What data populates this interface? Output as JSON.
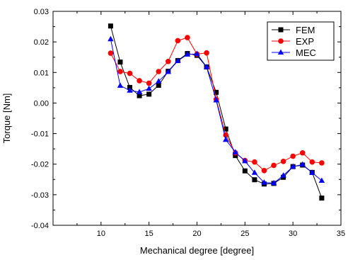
{
  "chart_data": {
    "type": "line",
    "title": "",
    "xlabel": "Mechanical degree [degree]",
    "ylabel": "Torque [Nm]",
    "xlim": [
      5,
      35
    ],
    "ylim": [
      -0.04,
      0.03
    ],
    "x_ticks": [
      10,
      15,
      20,
      25,
      30,
      35
    ],
    "y_ticks": [
      -0.04,
      -0.03,
      -0.02,
      -0.01,
      0.0,
      0.01,
      0.02,
      0.03
    ],
    "x_tick_labels": [
      "10",
      "15",
      "20",
      "25",
      "30",
      "35"
    ],
    "y_tick_labels": [
      "-0.04",
      "-0.03",
      "-0.02",
      "-0.01",
      "0.00",
      "0.01",
      "0.02",
      "0.03"
    ],
    "grid": false,
    "legend_position": "top-right",
    "x": [
      11,
      12,
      13,
      14,
      15,
      16,
      17,
      18,
      19,
      20,
      21,
      22,
      23,
      24,
      25,
      26,
      27,
      28,
      29,
      30,
      31,
      32,
      33
    ],
    "series": [
      {
        "name": "FEM",
        "color": "#000000",
        "marker": "square",
        "values": [
          0.0252,
          0.0134,
          0.0051,
          0.0024,
          0.0029,
          0.0058,
          0.0104,
          0.0139,
          0.0162,
          0.0156,
          0.0118,
          0.0035,
          -0.0085,
          -0.0172,
          -0.0222,
          -0.0251,
          -0.0265,
          -0.0263,
          -0.0243,
          -0.0208,
          -0.0203,
          -0.0227,
          -0.0311
        ]
      },
      {
        "name": "EXP",
        "color": "#ff0000",
        "marker": "circle",
        "values": [
          0.0163,
          0.0103,
          0.0097,
          0.0073,
          0.0065,
          0.0103,
          0.0136,
          0.0204,
          0.0214,
          0.016,
          0.0164,
          0.0012,
          -0.0105,
          -0.0163,
          -0.0188,
          -0.0193,
          -0.0221,
          -0.0204,
          -0.0191,
          -0.0174,
          -0.0163,
          -0.0193,
          -0.0196
        ]
      },
      {
        "name": "MEC",
        "color": "#0000ff",
        "marker": "triangle",
        "values": [
          0.0209,
          0.0057,
          0.0041,
          0.0036,
          0.0047,
          0.0071,
          0.0102,
          0.0138,
          0.0159,
          0.0161,
          0.0118,
          0.0009,
          -0.012,
          -0.0161,
          -0.019,
          -0.0228,
          -0.026,
          -0.0262,
          -0.0237,
          -0.0208,
          -0.0201,
          -0.0228,
          -0.0254
        ]
      }
    ]
  }
}
